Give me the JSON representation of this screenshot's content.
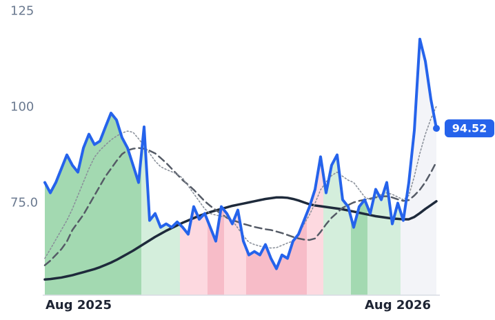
{
  "chart_data": {
    "type": "line",
    "categories": [
      "Aug 2025",
      null,
      null,
      null,
      null,
      null,
      null,
      null,
      null,
      null,
      null,
      null,
      null,
      null,
      null,
      null,
      null,
      null,
      null,
      null,
      null,
      null,
      null,
      null,
      null,
      null,
      null,
      null,
      null,
      null,
      null,
      null,
      null,
      null,
      null,
      null,
      null,
      null,
      null,
      null,
      null,
      null,
      null,
      null,
      null,
      null,
      null,
      null,
      null,
      null,
      null,
      null,
      null,
      null,
      null,
      null,
      null,
      null,
      null,
      null,
      null,
      null,
      null,
      null,
      "Aug 2026",
      null,
      null,
      null,
      null,
      null,
      null,
      null
    ],
    "ylim": [
      51,
      128
    ],
    "yticks": [
      {
        "value": 75,
        "label": "75.0"
      },
      100,
      125
    ],
    "series": [
      {
        "color": "#1e2a3b",
        "line_style": "solid",
        "values": [
          55.1,
          55.2,
          55.4,
          55.6,
          55.9,
          56.2,
          56.6,
          57.0,
          57.4,
          57.8,
          58.3,
          58.9,
          59.5,
          60.2,
          61.0,
          61.8,
          62.6,
          63.5,
          64.4,
          65.3,
          66.2,
          67.0,
          67.8,
          68.5,
          69.2,
          69.9,
          70.5,
          71.1,
          71.7,
          72.2,
          72.7,
          73.1,
          73.5,
          73.9,
          74.3,
          74.6,
          74.9,
          75.2,
          75.5,
          75.8,
          76.1,
          76.3,
          76.5,
          76.5,
          76.4,
          76.1,
          75.7,
          75.2,
          74.7,
          74.4,
          74.2,
          74.0,
          73.8,
          73.6,
          73.4,
          73.1,
          72.8,
          72.5,
          72.2,
          71.9,
          71.6,
          71.4,
          71.2,
          71.0,
          70.9,
          70.8,
          70.8,
          71.4,
          72.4,
          73.5,
          74.5,
          75.5
        ]
      },
      {
        "color": "#555b66",
        "line_style": "dashed",
        "values": [
          58.8,
          60,
          61.5,
          63,
          65,
          68,
          70,
          72,
          74.5,
          77,
          79.5,
          82,
          84,
          86,
          87.8,
          88.8,
          89.2,
          89.4,
          89.2,
          88.7,
          88,
          86.8,
          85.5,
          84,
          82.5,
          81,
          79.8,
          78.5,
          77,
          75.5,
          74.3,
          73.2,
          72.2,
          71.2,
          70.6,
          70.1,
          69.6,
          69.2,
          68.8,
          68.5,
          68.2,
          68,
          67.6,
          67.2,
          66.7,
          66.2,
          65.8,
          65.5,
          65.4,
          65.8,
          67.5,
          69.5,
          71.2,
          72.5,
          73.8,
          74.5,
          75.2,
          75.6,
          75.9,
          76.2,
          76.5,
          76.8,
          76.8,
          76.5,
          76.0,
          75.6,
          75.8,
          77,
          78.5,
          80.5,
          83,
          85.8
        ]
      },
      {
        "color": "#8a909a",
        "line_style": "dotted",
        "values": [
          60.6,
          63,
          65.5,
          68,
          70.5,
          73.5,
          77,
          80.5,
          84,
          87,
          88.8,
          90.2,
          91.5,
          92.5,
          93.3,
          93.8,
          93.5,
          91.8,
          90,
          88,
          86,
          84.5,
          83.8,
          83.2,
          82.6,
          81.5,
          79.5,
          77.5,
          75.5,
          73.5,
          72.3,
          71.9,
          71.6,
          71.4,
          70.5,
          68.5,
          66.5,
          64.8,
          64.2,
          63.8,
          63.5,
          63.3,
          63.4,
          64,
          64.6,
          65.1,
          67,
          69.5,
          72,
          75,
          78.5,
          80.5,
          82.2,
          83.1,
          82,
          81,
          80.4,
          78.5,
          76.6,
          75.9,
          76.5,
          77.3,
          77.7,
          77.3,
          76.6,
          75.9,
          77,
          82,
          88,
          93,
          97,
          100.3
        ]
      },
      {
        "color": "#2563eb",
        "line_style": "solid",
        "main": true,
        "values": [
          80.4,
          77.7,
          80.4,
          84,
          87.6,
          84.9,
          83.1,
          89.4,
          93,
          90.3,
          91.2,
          94.9,
          98.5,
          96.7,
          92.1,
          89.4,
          84.9,
          80.4,
          94.9,
          70.5,
          72.3,
          68.7,
          69.6,
          68.7,
          70.1,
          68.7,
          66.9,
          74.1,
          70.8,
          72.3,
          68.7,
          65.1,
          74.1,
          72.3,
          69.6,
          73.2,
          65.1,
          61.5,
          62.4,
          61.5,
          64.2,
          60.6,
          57.9,
          61.5,
          60.6,
          65.1,
          66.9,
          70.5,
          74.1,
          78.6,
          87.1,
          77.7,
          84.9,
          87.6,
          75.9,
          74.1,
          68.7,
          74.1,
          75.9,
          72.3,
          78.6,
          75.9,
          80.4,
          69.6,
          75,
          70.5,
          80.4,
          94,
          117.8,
          112,
          102.1,
          94.52
        ]
      }
    ],
    "bands": [
      {
        "from": 0,
        "to": 17,
        "color": "#a3d9b1"
      },
      {
        "from": 18,
        "to": 24,
        "color": "#d4eedc"
      },
      {
        "from": 25,
        "to": 29,
        "color": "#fdd9e0"
      },
      {
        "from": 30,
        "to": 32,
        "color": "#f7bcc8"
      },
      {
        "from": 33,
        "to": 36,
        "color": "#fdd9e0"
      },
      {
        "from": 37,
        "to": 47,
        "color": "#f7bcc8"
      },
      {
        "from": 48,
        "to": 50,
        "color": "#fdd9e0"
      },
      {
        "from": 51,
        "to": 55,
        "color": "#d4eedc"
      },
      {
        "from": 56,
        "to": 58,
        "color": "#a3d9b1"
      },
      {
        "from": 59,
        "to": 64,
        "color": "#d4eedc"
      },
      {
        "from": 65,
        "to": 71,
        "color": "#f3f4f8"
      }
    ]
  }
}
